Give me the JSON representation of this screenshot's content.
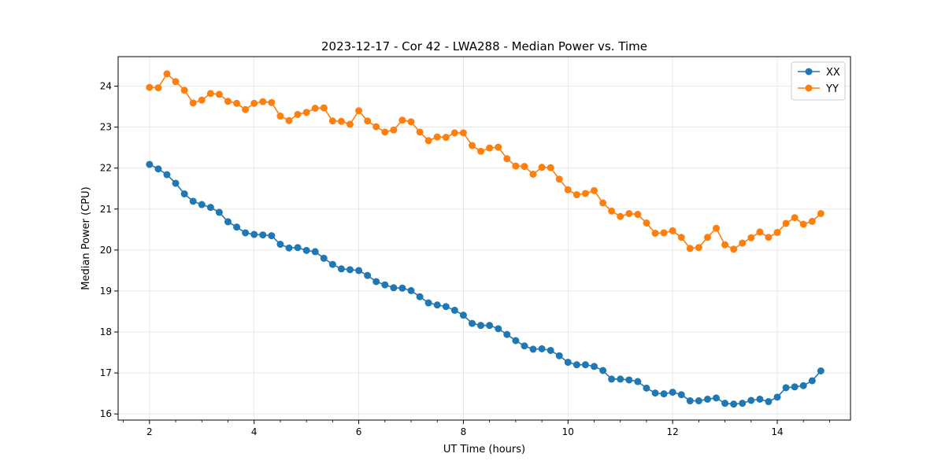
{
  "chart_data": {
    "type": "line",
    "title": "2023-12-17 - Cor 42 - LWA288 - Median Power vs. Time",
    "xlabel": "UT Time (hours)",
    "ylabel": "Median Power (CPU)",
    "xlim": [
      1.4,
      15.4
    ],
    "ylim": [
      15.85,
      24.72
    ],
    "xticks": [
      2,
      4,
      6,
      8,
      10,
      12,
      14
    ],
    "yticks": [
      16,
      17,
      18,
      19,
      20,
      21,
      22,
      23,
      24
    ],
    "grid": true,
    "legend_position": "top-right",
    "x": [
      2.0,
      2.167,
      2.333,
      2.5,
      2.667,
      2.833,
      3.0,
      3.167,
      3.333,
      3.5,
      3.667,
      3.833,
      4.0,
      4.167,
      4.333,
      4.5,
      4.667,
      4.833,
      5.0,
      5.167,
      5.333,
      5.5,
      5.667,
      5.833,
      6.0,
      6.167,
      6.333,
      6.5,
      6.667,
      6.833,
      7.0,
      7.167,
      7.333,
      7.5,
      7.667,
      7.833,
      8.0,
      8.167,
      8.333,
      8.5,
      8.667,
      8.833,
      9.0,
      9.167,
      9.333,
      9.5,
      9.667,
      9.833,
      10.0,
      10.167,
      10.333,
      10.5,
      10.667,
      10.833,
      11.0,
      11.167,
      11.333,
      11.5,
      11.667,
      11.833,
      12.0,
      12.167,
      12.333,
      12.5,
      12.667,
      12.833,
      13.0,
      13.167,
      13.333,
      13.5,
      13.667,
      13.833,
      14.0,
      14.167,
      14.333,
      14.5,
      14.667,
      14.833
    ],
    "series": [
      {
        "name": "XX",
        "color": "#1f77b4",
        "values": [
          22.09,
          21.98,
          21.84,
          21.63,
          21.37,
          21.19,
          21.11,
          21.04,
          20.92,
          20.69,
          20.56,
          20.42,
          20.38,
          20.37,
          20.35,
          20.14,
          20.05,
          20.06,
          19.99,
          19.96,
          19.8,
          19.65,
          19.54,
          19.52,
          19.5,
          19.38,
          19.23,
          19.15,
          19.08,
          19.07,
          19.01,
          18.86,
          18.71,
          18.66,
          18.62,
          18.53,
          18.41,
          18.21,
          18.16,
          18.16,
          18.08,
          17.94,
          17.79,
          17.66,
          17.58,
          17.59,
          17.55,
          17.42,
          17.26,
          17.2,
          17.2,
          17.16,
          17.06,
          16.85,
          16.85,
          16.83,
          16.79,
          16.63,
          16.51,
          16.49,
          16.53,
          16.47,
          16.32,
          16.32,
          16.36,
          16.39,
          16.26,
          16.24,
          16.26,
          16.33,
          16.36,
          16.3,
          16.41,
          16.64,
          16.66,
          16.69,
          16.81,
          17.05
        ]
      },
      {
        "name": "YY",
        "color": "#ff7f0e",
        "values": [
          23.97,
          23.96,
          24.3,
          24.11,
          23.9,
          23.59,
          23.66,
          23.82,
          23.8,
          23.63,
          23.58,
          23.43,
          23.58,
          23.62,
          23.6,
          23.27,
          23.16,
          23.31,
          23.36,
          23.46,
          23.47,
          23.15,
          23.14,
          23.07,
          23.4,
          23.15,
          23.01,
          22.88,
          22.93,
          23.17,
          23.13,
          22.88,
          22.67,
          22.76,
          22.75,
          22.86,
          22.86,
          22.55,
          22.41,
          22.49,
          22.51,
          22.23,
          22.05,
          22.04,
          21.85,
          22.02,
          22.01,
          21.73,
          21.47,
          21.35,
          21.38,
          21.45,
          21.15,
          20.95,
          20.82,
          20.89,
          20.87,
          20.66,
          20.41,
          20.42,
          20.47,
          20.31,
          20.04,
          20.06,
          20.31,
          20.53,
          20.13,
          20.02,
          20.17,
          20.3,
          20.44,
          20.31,
          20.43,
          20.65,
          20.79,
          20.63,
          20.7,
          20.89
        ]
      }
    ]
  }
}
